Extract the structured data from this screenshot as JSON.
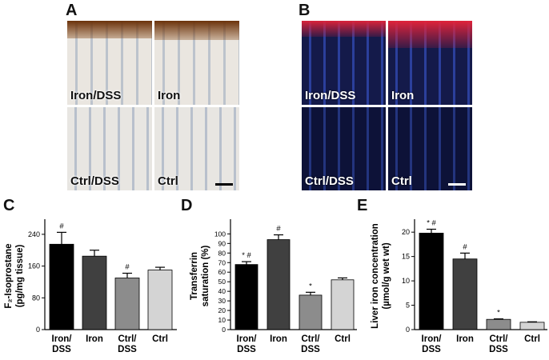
{
  "panels": {
    "A": {
      "letter": "A",
      "tiles": [
        {
          "label": "Iron/DSS"
        },
        {
          "label": "Iron"
        },
        {
          "label": "Ctrl/DSS"
        },
        {
          "label": "Ctrl"
        }
      ]
    },
    "B": {
      "letter": "B",
      "tiles": [
        {
          "label": "Iron/DSS"
        },
        {
          "label": "Iron"
        },
        {
          "label": "Ctrl/DSS"
        },
        {
          "label": "Ctrl"
        }
      ]
    },
    "C": {
      "letter": "C"
    },
    "D": {
      "letter": "D"
    },
    "E": {
      "letter": "E"
    }
  },
  "chart_data": [
    {
      "type": "bar",
      "panel": "C",
      "ylabel_line1": "F₂-Isoprostane",
      "ylabel_line2": "(pg/mg tissue)",
      "ylim": [
        0,
        270
      ],
      "yticks": [
        "0",
        "80",
        "160",
        "240"
      ],
      "ytick_values": [
        0,
        80,
        160,
        240
      ],
      "categories": [
        [
          "Iron/",
          "DSS"
        ],
        [
          "Iron"
        ],
        [
          "Ctrl/",
          "DSS"
        ],
        [
          "Ctrl"
        ]
      ],
      "values": [
        215,
        185,
        130,
        150
      ],
      "errors": [
        30,
        15,
        12,
        7
      ],
      "annotations": [
        "#",
        "",
        "#",
        ""
      ],
      "colors": [
        "#000000",
        "#404040",
        "#8c8c8c",
        "#d4d4d4"
      ]
    },
    {
      "type": "bar",
      "panel": "D",
      "ylabel_line1": "Transferrin",
      "ylabel_line2": "saturation (%)",
      "ylim": [
        0,
        112
      ],
      "yticks": [
        "0",
        "10",
        "20",
        "30",
        "40",
        "50",
        "60",
        "70",
        "80",
        "90",
        "100"
      ],
      "ytick_values": [
        0,
        10,
        20,
        30,
        40,
        50,
        60,
        70,
        80,
        90,
        100
      ],
      "categories": [
        [
          "Iron/",
          "DSS"
        ],
        [
          "Iron"
        ],
        [
          "Ctrl/",
          "DSS"
        ],
        [
          "Ctrl"
        ]
      ],
      "values": [
        68,
        94,
        36,
        52
      ],
      "errors": [
        3,
        5,
        3,
        2
      ],
      "annotations": [
        "* #",
        "#",
        "*",
        ""
      ],
      "colors": [
        "#000000",
        "#404040",
        "#8c8c8c",
        "#d4d4d4"
      ]
    },
    {
      "type": "bar",
      "panel": "E",
      "ylabel_line1": "Liver iron concentration",
      "ylabel_line2": "(µmol/g wet wt)",
      "ylim": [
        0,
        22
      ],
      "yticks": [
        "0",
        "5",
        "10",
        "15",
        "20"
      ],
      "ytick_values": [
        0,
        5,
        10,
        15,
        20
      ],
      "categories": [
        [
          "Iron/",
          "DSS"
        ],
        [
          "Iron"
        ],
        [
          "Ctrl/",
          "DSS"
        ],
        [
          "Ctrl"
        ]
      ],
      "values": [
        19.8,
        14.5,
        2.1,
        1.5
      ],
      "errors": [
        0.8,
        1.2,
        0.1,
        0.1
      ],
      "annotations": [
        "* #",
        "#",
        "*",
        ""
      ],
      "colors": [
        "#000000",
        "#404040",
        "#8c8c8c",
        "#d4d4d4"
      ]
    }
  ]
}
